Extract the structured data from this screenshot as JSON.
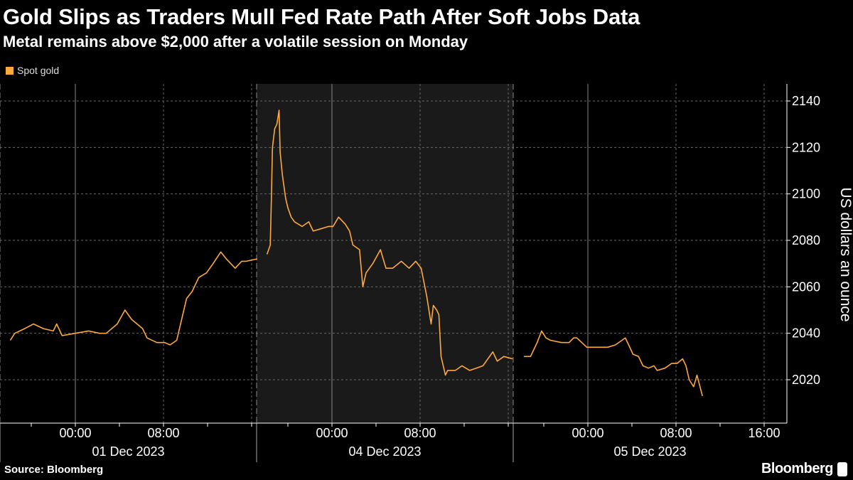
{
  "title": "Gold Slips as Traders Mull Fed Rate Path After Soft Jobs Data",
  "subtitle": "Metal remains above $2,000 after a volatile session on Monday",
  "source": "Source: Bloomberg",
  "brand": "Bloomberg",
  "colors": {
    "line": "#ffa83c",
    "shade": "#1a1a1a",
    "grid": "#666666"
  },
  "chart_data": {
    "type": "line",
    "title": "Gold Slips as Traders Mull Fed Rate Path After Soft Jobs Data",
    "ylabel": "US dollars an ounce",
    "xlabel": "",
    "ylim": [
      2008,
      2145
    ],
    "yticks": [
      2020,
      2040,
      2060,
      2080,
      2100,
      2120,
      2140
    ],
    "legend": {
      "position": "top-left",
      "entries": [
        "Spot gold"
      ]
    },
    "grid": true,
    "days": [
      {
        "label": "01 Dec 2023",
        "hour_ticks": [
          "00:00",
          "08:00"
        ],
        "shaded": false
      },
      {
        "label": "04 Dec 2023",
        "hour_ticks": [
          "00:00",
          "08:00"
        ],
        "shaded": true
      },
      {
        "label": "05 Dec 2023",
        "hour_ticks": [
          "00:00",
          "08:00",
          "16:00"
        ],
        "shaded": false
      }
    ],
    "series": [
      {
        "name": "Spot gold",
        "note": "points are [day_index, hours_from_midnight, price]",
        "points": [
          [
            0,
            -5.9,
            2037
          ],
          [
            0,
            -5.5,
            2040
          ],
          [
            0,
            -4.6,
            2042
          ],
          [
            0,
            -3.8,
            2044
          ],
          [
            0,
            -2.9,
            2042
          ],
          [
            0,
            -2.0,
            2041
          ],
          [
            0,
            -1.7,
            2044
          ],
          [
            0,
            -1.2,
            2039
          ],
          [
            0,
            0,
            2040
          ],
          [
            0,
            1.2,
            2041
          ],
          [
            0,
            2.2,
            2040
          ],
          [
            0,
            2.8,
            2040
          ],
          [
            0,
            3.8,
            2044
          ],
          [
            0,
            4.5,
            2050
          ],
          [
            0,
            5.1,
            2046
          ],
          [
            0,
            6.1,
            2042
          ],
          [
            0,
            6.5,
            2038
          ],
          [
            0,
            7.4,
            2036
          ],
          [
            0,
            8.1,
            2036
          ],
          [
            0,
            8.6,
            2035
          ],
          [
            0,
            9.2,
            2037
          ],
          [
            0,
            9.6,
            2045
          ],
          [
            0,
            10.1,
            2055
          ],
          [
            0,
            10.6,
            2058
          ],
          [
            0,
            11.2,
            2064
          ],
          [
            0,
            11.9,
            2066
          ],
          [
            0,
            12.5,
            2070
          ],
          [
            0,
            13.2,
            2075
          ],
          [
            0,
            13.7,
            2072
          ],
          [
            0,
            14.5,
            2068
          ],
          [
            0,
            15.1,
            2071
          ],
          [
            0,
            15.5,
            2071
          ],
          [
            0,
            16.5,
            2072
          ],
          [
            1,
            -5.9,
            2074
          ],
          [
            1,
            -5.6,
            2078
          ],
          [
            1,
            -5.5,
            2098
          ],
          [
            1,
            -5.4,
            2120
          ],
          [
            1,
            -5.2,
            2128
          ],
          [
            1,
            -5.0,
            2130
          ],
          [
            1,
            -4.8,
            2136
          ],
          [
            1,
            -4.7,
            2118
          ],
          [
            1,
            -4.5,
            2108
          ],
          [
            1,
            -4.2,
            2098
          ],
          [
            1,
            -4.0,
            2094
          ],
          [
            1,
            -3.7,
            2090
          ],
          [
            1,
            -3.4,
            2088
          ],
          [
            1,
            -2.7,
            2086
          ],
          [
            1,
            -2.1,
            2088
          ],
          [
            1,
            -1.7,
            2084
          ],
          [
            1,
            -1.0,
            2085
          ],
          [
            1,
            -0.3,
            2086
          ],
          [
            1,
            0.1,
            2086
          ],
          [
            1,
            0.6,
            2090
          ],
          [
            1,
            1.2,
            2087
          ],
          [
            1,
            1.6,
            2084
          ],
          [
            1,
            1.8,
            2080
          ],
          [
            1,
            1.9,
            2078
          ],
          [
            1,
            2.5,
            2076
          ],
          [
            1,
            2.8,
            2060
          ],
          [
            1,
            3.1,
            2066
          ],
          [
            1,
            3.7,
            2070
          ],
          [
            1,
            4.4,
            2076
          ],
          [
            1,
            4.9,
            2068
          ],
          [
            1,
            5.5,
            2068
          ],
          [
            1,
            6.3,
            2071
          ],
          [
            1,
            7.0,
            2068
          ],
          [
            1,
            7.6,
            2071
          ],
          [
            1,
            8.1,
            2068
          ],
          [
            1,
            8.6,
            2056
          ],
          [
            1,
            9.0,
            2044
          ],
          [
            1,
            9.2,
            2052
          ],
          [
            1,
            9.5,
            2050
          ],
          [
            1,
            9.7,
            2048
          ],
          [
            1,
            9.9,
            2030
          ],
          [
            1,
            10.3,
            2022
          ],
          [
            1,
            10.5,
            2024
          ],
          [
            1,
            11.2,
            2024
          ],
          [
            1,
            11.8,
            2026
          ],
          [
            1,
            12.5,
            2024
          ],
          [
            1,
            13.1,
            2025
          ],
          [
            1,
            13.7,
            2026
          ],
          [
            1,
            14.6,
            2032
          ],
          [
            1,
            15.0,
            2028
          ],
          [
            1,
            15.6,
            2030
          ],
          [
            1,
            16.4,
            2029
          ],
          [
            2,
            -5.8,
            2030
          ],
          [
            2,
            -5.2,
            2030
          ],
          [
            2,
            -4.9,
            2033
          ],
          [
            2,
            -4.6,
            2036
          ],
          [
            2,
            -4.2,
            2041
          ],
          [
            2,
            -3.8,
            2038
          ],
          [
            2,
            -3.4,
            2037
          ],
          [
            2,
            -2.4,
            2036
          ],
          [
            2,
            -1.7,
            2036
          ],
          [
            2,
            -1.3,
            2038
          ],
          [
            2,
            -1.0,
            2038
          ],
          [
            2,
            -0.1,
            2034
          ],
          [
            2,
            0.5,
            2034
          ],
          [
            2,
            1.2,
            2034
          ],
          [
            2,
            1.8,
            2034
          ],
          [
            2,
            2.5,
            2035
          ],
          [
            2,
            3.1,
            2037
          ],
          [
            2,
            3.4,
            2038
          ],
          [
            2,
            3.7,
            2035
          ],
          [
            2,
            4.1,
            2031
          ],
          [
            2,
            4.6,
            2030
          ],
          [
            2,
            5.0,
            2026
          ],
          [
            2,
            5.5,
            2025
          ],
          [
            2,
            6.0,
            2026
          ],
          [
            2,
            6.3,
            2024
          ],
          [
            2,
            7.0,
            2025
          ],
          [
            2,
            7.6,
            2027
          ],
          [
            2,
            8.1,
            2027
          ],
          [
            2,
            8.6,
            2029
          ],
          [
            2,
            8.9,
            2026
          ],
          [
            2,
            9.2,
            2020
          ],
          [
            2,
            9.6,
            2017
          ],
          [
            2,
            9.9,
            2022
          ],
          [
            2,
            10.4,
            2013
          ]
        ]
      }
    ]
  }
}
